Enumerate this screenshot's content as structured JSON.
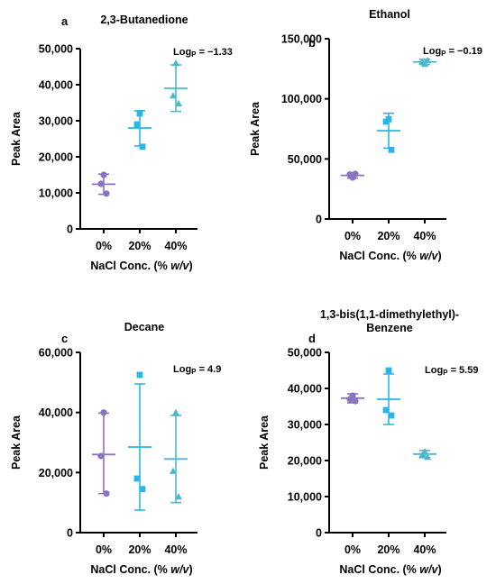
{
  "colors": {
    "g0": "#8A72C2",
    "g1": "#2AB7E8",
    "g2": "#4DB8CC",
    "axis": "#000000"
  },
  "x_label_prefix": "NaCl Conc. (% ",
  "x_label_italic": "w/v",
  "x_label_suffix": ")",
  "chart_data": [
    {
      "panel": "a",
      "type": "scatter",
      "title": "2,3-Butanedione",
      "title2": "",
      "logp_label": "Log",
      "logp_sub": "P",
      "logp_value": " = −1.33",
      "ylabel": "Peak Area",
      "ylim": [
        0,
        50000
      ],
      "yticks": [
        "0",
        "10,000",
        "20,000",
        "30,000",
        "40,000",
        "50,000"
      ],
      "ytick_values": [
        0,
        10000,
        20000,
        30000,
        40000,
        50000
      ],
      "categories": [
        "0%",
        "20%",
        "40%"
      ],
      "markers": [
        "circle",
        "square",
        "triangle"
      ],
      "points": [
        [
          15000,
          12500,
          9800
        ],
        [
          32000,
          29000,
          22800
        ],
        [
          46000,
          37000,
          34800
        ]
      ],
      "mean": [
        12400,
        28000,
        39000
      ],
      "err_low": [
        9600,
        23000,
        32600
      ],
      "err_high": [
        15200,
        32800,
        45500
      ]
    },
    {
      "panel": "b",
      "type": "scatter",
      "title": "Ethanol",
      "title2": "",
      "logp_label": "Log",
      "logp_sub": "P",
      "logp_value": " = −0.19",
      "ylabel": "Peak Area",
      "ylim": [
        0,
        150000
      ],
      "yticks": [
        "0",
        "50,000",
        "100,000",
        "150,000"
      ],
      "ytick_values": [
        0,
        50000,
        100000,
        150000
      ],
      "categories": [
        "0%",
        "20%",
        "40%"
      ],
      "markers": [
        "circle",
        "square",
        "triangle"
      ],
      "points": [
        [
          34500,
          37000,
          37500
        ],
        [
          83000,
          81000,
          57500
        ],
        [
          129000,
          131000,
          132000
        ]
      ],
      "mean": [
        36300,
        73500,
        130700
      ],
      "err_low": [
        34000,
        59000,
        128500
      ],
      "err_high": [
        38500,
        88000,
        133000
      ]
    },
    {
      "panel": "c",
      "type": "scatter",
      "title": "Decane",
      "title2": "",
      "logp_label": "Log",
      "logp_sub": "P",
      "logp_value": " = 4.9",
      "ylabel": "Peak Area",
      "ylim": [
        0,
        60000
      ],
      "yticks": [
        "0",
        "20,000",
        "40,000",
        "60,000"
      ],
      "ytick_values": [
        0,
        20000,
        40000,
        60000
      ],
      "categories": [
        "0%",
        "20%",
        "40%"
      ],
      "markers": [
        "circle",
        "square",
        "triangle"
      ],
      "points": [
        [
          40000,
          25500,
          13000
        ],
        [
          52500,
          18000,
          14500
        ],
        [
          40000,
          20500,
          12000
        ]
      ],
      "mean": [
        26000,
        28500,
        24500
      ],
      "err_low": [
        13000,
        7500,
        10000
      ],
      "err_high": [
        39800,
        49500,
        39000
      ]
    },
    {
      "panel": "d",
      "type": "scatter",
      "title": "1,3-bis(1,1-dimethylethyl)-",
      "title2": "Benzene",
      "logp_label": "Log",
      "logp_sub": "P",
      "logp_value": " = 5.59",
      "ylabel": "Peak Area",
      "ylim": [
        0,
        50000
      ],
      "yticks": [
        "0",
        "10,000",
        "20,000",
        "30,000",
        "40,000",
        "50,000"
      ],
      "ytick_values": [
        0,
        10000,
        20000,
        30000,
        40000,
        50000
      ],
      "categories": [
        "0%",
        "20%",
        "40%"
      ],
      "markers": [
        "circle",
        "square",
        "triangle"
      ],
      "points": [
        [
          38000,
          37000,
          36500
        ],
        [
          45000,
          34000,
          32500
        ],
        [
          22500,
          21500,
          21000
        ]
      ],
      "mean": [
        37300,
        37000,
        21800
      ],
      "err_low": [
        36000,
        30000,
        20800
      ],
      "err_high": [
        38500,
        44000,
        22800
      ]
    }
  ]
}
